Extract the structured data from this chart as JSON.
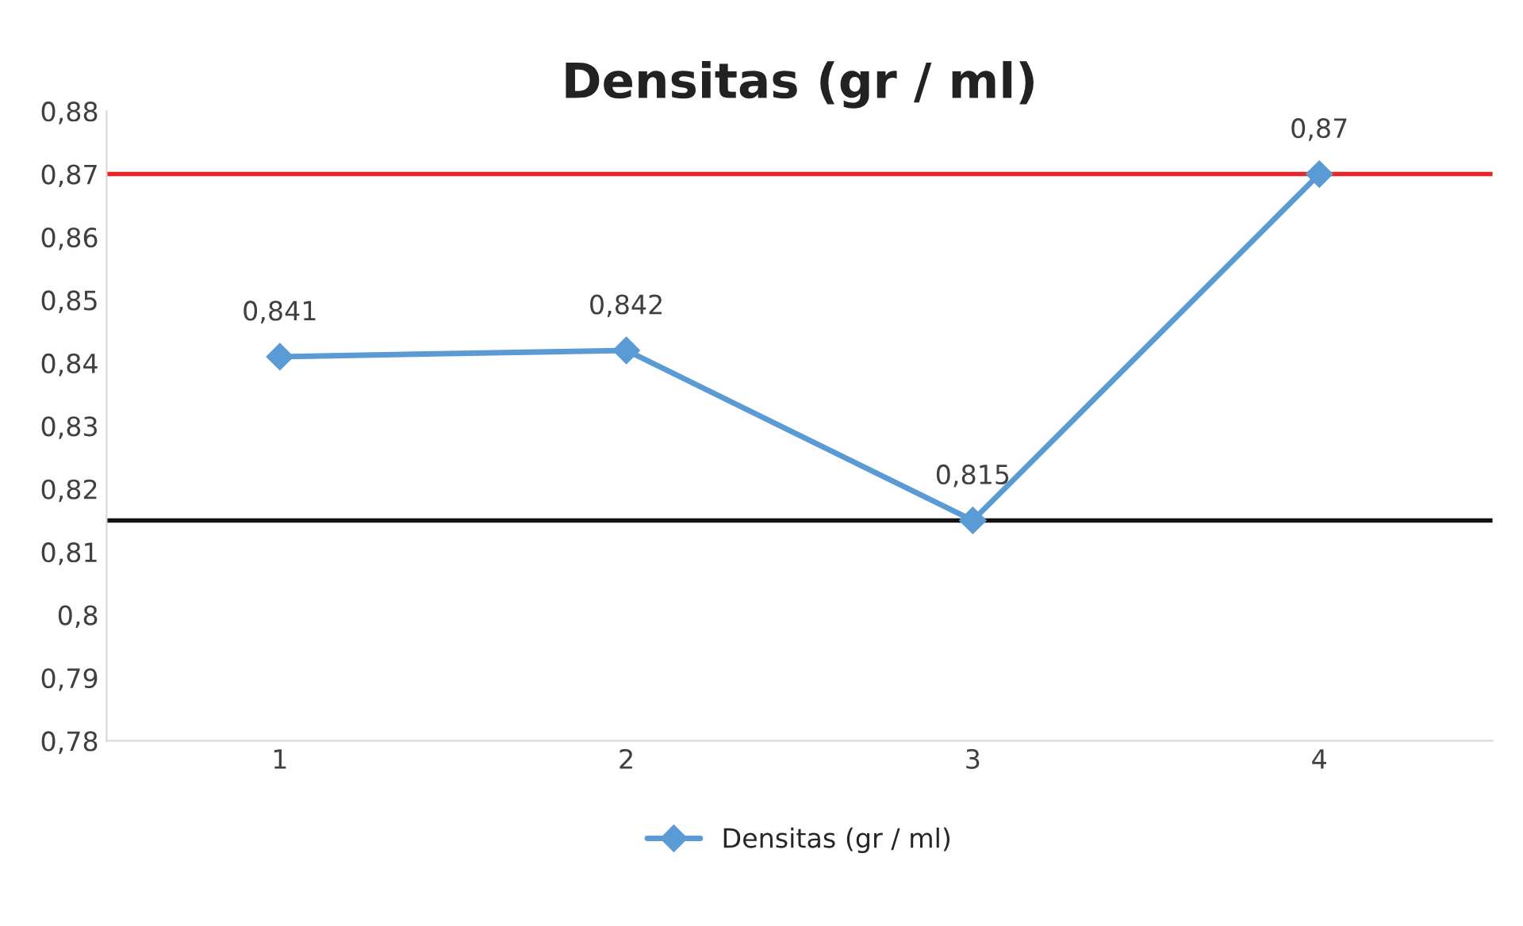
{
  "chart_data": {
    "type": "line",
    "title": "Densitas (gr / ml)",
    "categories": [
      "1",
      "2",
      "3",
      "4"
    ],
    "series": [
      {
        "name": "Densitas (gr / ml)",
        "color": "#5b9bd5",
        "values": [
          0.841,
          0.842,
          0.815,
          0.87
        ],
        "value_labels": [
          "0,841",
          "0,842",
          "0,815",
          "0,87"
        ]
      }
    ],
    "ylim": [
      0.78,
      0.88
    ],
    "yticks": [
      {
        "value": 0.78,
        "label": "0,78"
      },
      {
        "value": 0.79,
        "label": "0,79"
      },
      {
        "value": 0.8,
        "label": "0,8"
      },
      {
        "value": 0.81,
        "label": "0,81"
      },
      {
        "value": 0.82,
        "label": "0,82"
      },
      {
        "value": 0.83,
        "label": "0,83"
      },
      {
        "value": 0.84,
        "label": "0,84"
      },
      {
        "value": 0.85,
        "label": "0,85"
      },
      {
        "value": 0.86,
        "label": "0,86"
      },
      {
        "value": 0.87,
        "label": "0,87"
      },
      {
        "value": 0.88,
        "label": "0,88"
      }
    ],
    "ref_lines": [
      {
        "axis": "y",
        "value": 0.87,
        "color": "#e8262a"
      },
      {
        "axis": "y",
        "value": 0.815,
        "color": "#111111"
      }
    ],
    "marker": "diamond",
    "line_style": "solid",
    "legend": "bottom",
    "grid": false
  }
}
